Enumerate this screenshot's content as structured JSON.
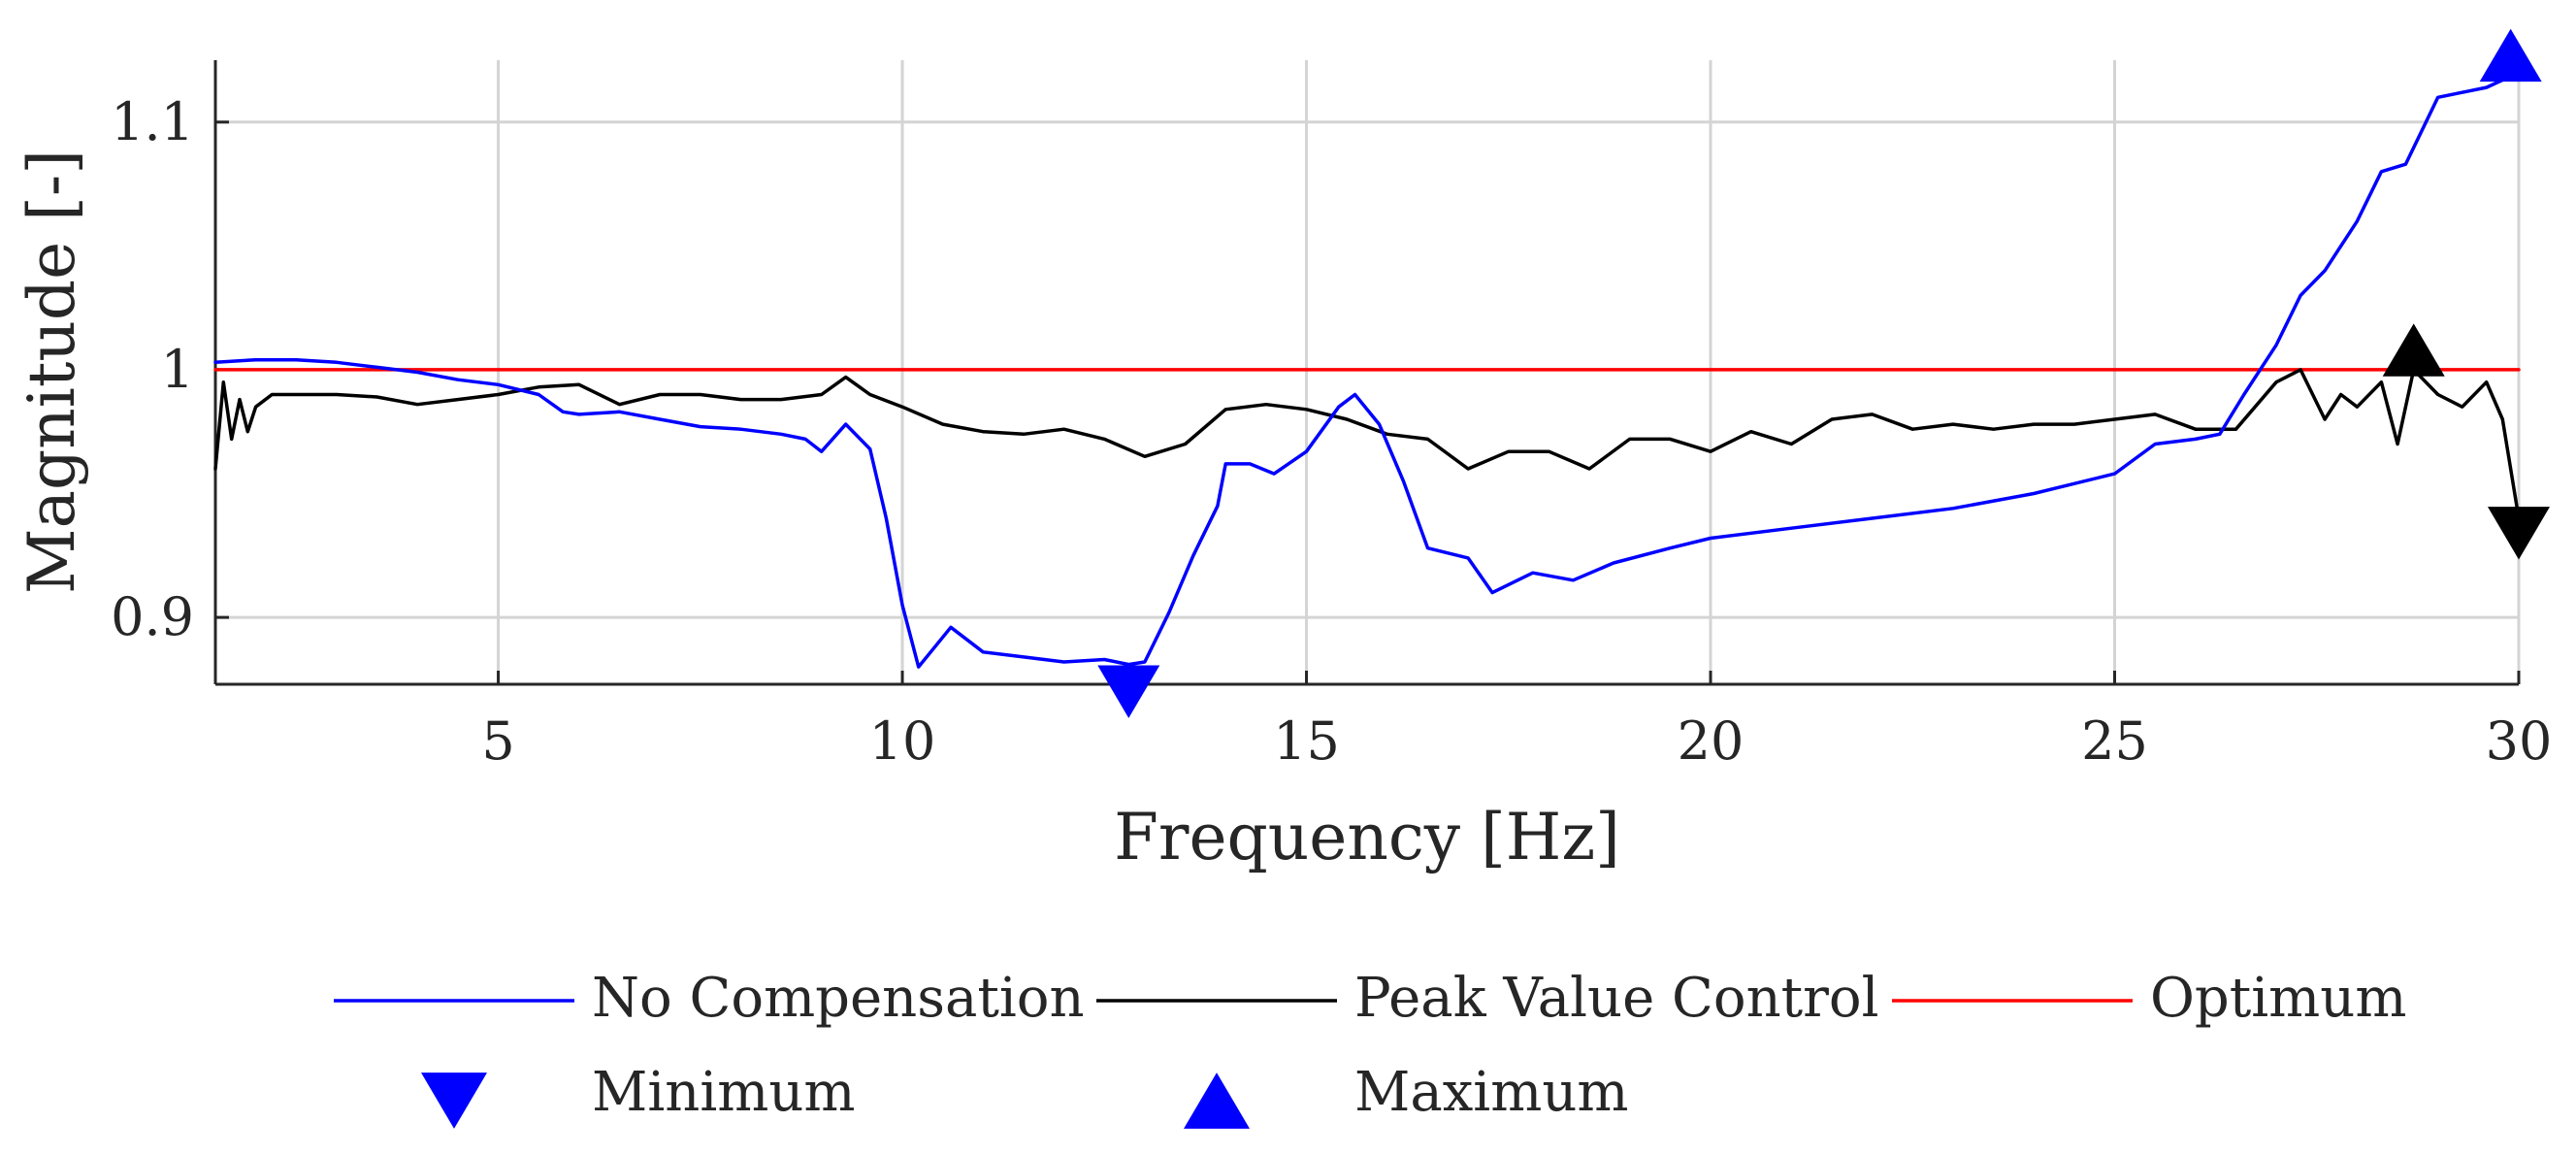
{
  "chart_data": {
    "type": "line",
    "title": "",
    "xlabel": "Frequency [Hz]",
    "ylabel": "Magnitude [-]",
    "xlim": [
      1.5,
      30
    ],
    "ylim": [
      0.873,
      1.125
    ],
    "grid": true,
    "xticks": [
      5,
      10,
      15,
      20,
      25,
      30
    ],
    "xtick_labels": [
      "5",
      "10",
      "15",
      "20",
      "25",
      "30"
    ],
    "yticks": [
      0.9,
      1.0,
      1.1
    ],
    "ytick_labels": [
      "0.9",
      "1",
      "1.1"
    ],
    "series": [
      {
        "name": "No Compensation",
        "color": "#0000ff",
        "x": [
          1.5,
          2.0,
          2.5,
          3.0,
          3.5,
          4.0,
          4.5,
          5.0,
          5.5,
          5.8,
          6.0,
          6.5,
          7.0,
          7.5,
          8.0,
          8.5,
          8.8,
          9.0,
          9.3,
          9.6,
          9.8,
          10.0,
          10.2,
          10.4,
          10.6,
          11.0,
          11.5,
          12.0,
          12.5,
          12.8,
          13.0,
          13.3,
          13.6,
          13.9,
          14.0,
          14.3,
          14.6,
          15.0,
          15.4,
          15.6,
          15.9,
          16.2,
          16.5,
          17.0,
          17.3,
          17.8,
          18.3,
          18.8,
          19.5,
          20.0,
          21.0,
          22.0,
          23.0,
          24.0,
          25.0,
          25.5,
          26.0,
          26.3,
          26.6,
          27.0,
          27.3,
          27.6,
          28.0,
          28.3,
          28.6,
          29.0,
          29.3,
          29.6,
          30.0
        ],
        "values": [
          1.003,
          1.004,
          1.004,
          1.003,
          1.001,
          0.999,
          0.996,
          0.994,
          0.99,
          0.983,
          0.982,
          0.983,
          0.98,
          0.977,
          0.976,
          0.974,
          0.972,
          0.967,
          0.978,
          0.968,
          0.94,
          0.905,
          0.88,
          0.888,
          0.896,
          0.886,
          0.884,
          0.882,
          0.883,
          0.881,
          0.882,
          0.902,
          0.925,
          0.945,
          0.962,
          0.962,
          0.958,
          0.967,
          0.985,
          0.99,
          0.978,
          0.955,
          0.928,
          0.924,
          0.91,
          0.918,
          0.915,
          0.922,
          0.928,
          0.932,
          0.936,
          0.94,
          0.944,
          0.95,
          0.958,
          0.97,
          0.972,
          0.974,
          0.99,
          1.01,
          1.03,
          1.04,
          1.06,
          1.08,
          1.083,
          1.11,
          1.112,
          1.114,
          1.12
        ]
      },
      {
        "name": "Peak Value Control",
        "color": "#000000",
        "x": [
          1.5,
          1.6,
          1.7,
          1.8,
          1.9,
          2.0,
          2.2,
          2.5,
          3.0,
          3.5,
          4.0,
          4.5,
          5.0,
          5.5,
          6.0,
          6.5,
          7.0,
          7.5,
          8.0,
          8.5,
          9.0,
          9.3,
          9.6,
          10.0,
          10.5,
          11.0,
          11.5,
          12.0,
          12.5,
          13.0,
          13.5,
          14.0,
          14.5,
          15.0,
          15.5,
          16.0,
          16.5,
          17.0,
          17.5,
          18.0,
          18.5,
          19.0,
          19.5,
          20.0,
          20.5,
          21.0,
          21.5,
          22.0,
          22.5,
          23.0,
          23.5,
          24.0,
          24.5,
          25.0,
          25.5,
          26.0,
          26.5,
          27.0,
          27.3,
          27.6,
          27.8,
          28.0,
          28.3,
          28.5,
          28.7,
          29.0,
          29.3,
          29.6,
          29.8,
          30.0
        ],
        "values": [
          0.96,
          0.995,
          0.972,
          0.988,
          0.975,
          0.985,
          0.99,
          0.99,
          0.99,
          0.989,
          0.986,
          0.988,
          0.99,
          0.993,
          0.994,
          0.986,
          0.99,
          0.99,
          0.988,
          0.988,
          0.99,
          0.997,
          0.99,
          0.985,
          0.978,
          0.975,
          0.974,
          0.976,
          0.972,
          0.965,
          0.97,
          0.984,
          0.986,
          0.984,
          0.98,
          0.974,
          0.972,
          0.96,
          0.967,
          0.967,
          0.96,
          0.972,
          0.972,
          0.967,
          0.975,
          0.97,
          0.98,
          0.982,
          0.976,
          0.978,
          0.976,
          0.978,
          0.978,
          0.98,
          0.982,
          0.976,
          0.976,
          0.995,
          1.0,
          0.98,
          0.99,
          0.985,
          0.995,
          0.97,
          1.0,
          0.99,
          0.985,
          0.995,
          0.98,
          0.94
        ]
      },
      {
        "name": "Optimum",
        "color": "#ff0000",
        "x": [
          1.5,
          30.0
        ],
        "values": [
          1.0,
          1.0
        ]
      }
    ],
    "markers": [
      {
        "name": "Minimum",
        "series": "No Compensation",
        "shape": "triangle-down",
        "color": "#0000ff",
        "x": 12.8,
        "y": 0.87
      },
      {
        "name": "Maximum",
        "series": "No Compensation",
        "shape": "triangle-up",
        "color": "#0000ff",
        "x": 29.9,
        "y": 1.127
      },
      {
        "name": "Maximum",
        "series": "Peak Value Control",
        "shape": "triangle-up",
        "color": "#000000",
        "x": 28.7,
        "y": 1.008
      },
      {
        "name": "Minimum",
        "series": "Peak Value Control",
        "shape": "triangle-down",
        "color": "#000000",
        "x": 30.0,
        "y": 0.934
      }
    ],
    "legend": {
      "placement": "bottom",
      "entries": [
        {
          "label": "No Compensation",
          "kind": "line",
          "color": "#0000ff"
        },
        {
          "label": "Peak Value Control",
          "kind": "line",
          "color": "#000000"
        },
        {
          "label": "Optimum",
          "kind": "line",
          "color": "#ff0000"
        },
        {
          "label": "Minimum",
          "kind": "triangle-down",
          "color": "#0000ff"
        },
        {
          "label": "Maximum",
          "kind": "triangle-up",
          "color": "#0000ff"
        }
      ]
    }
  }
}
